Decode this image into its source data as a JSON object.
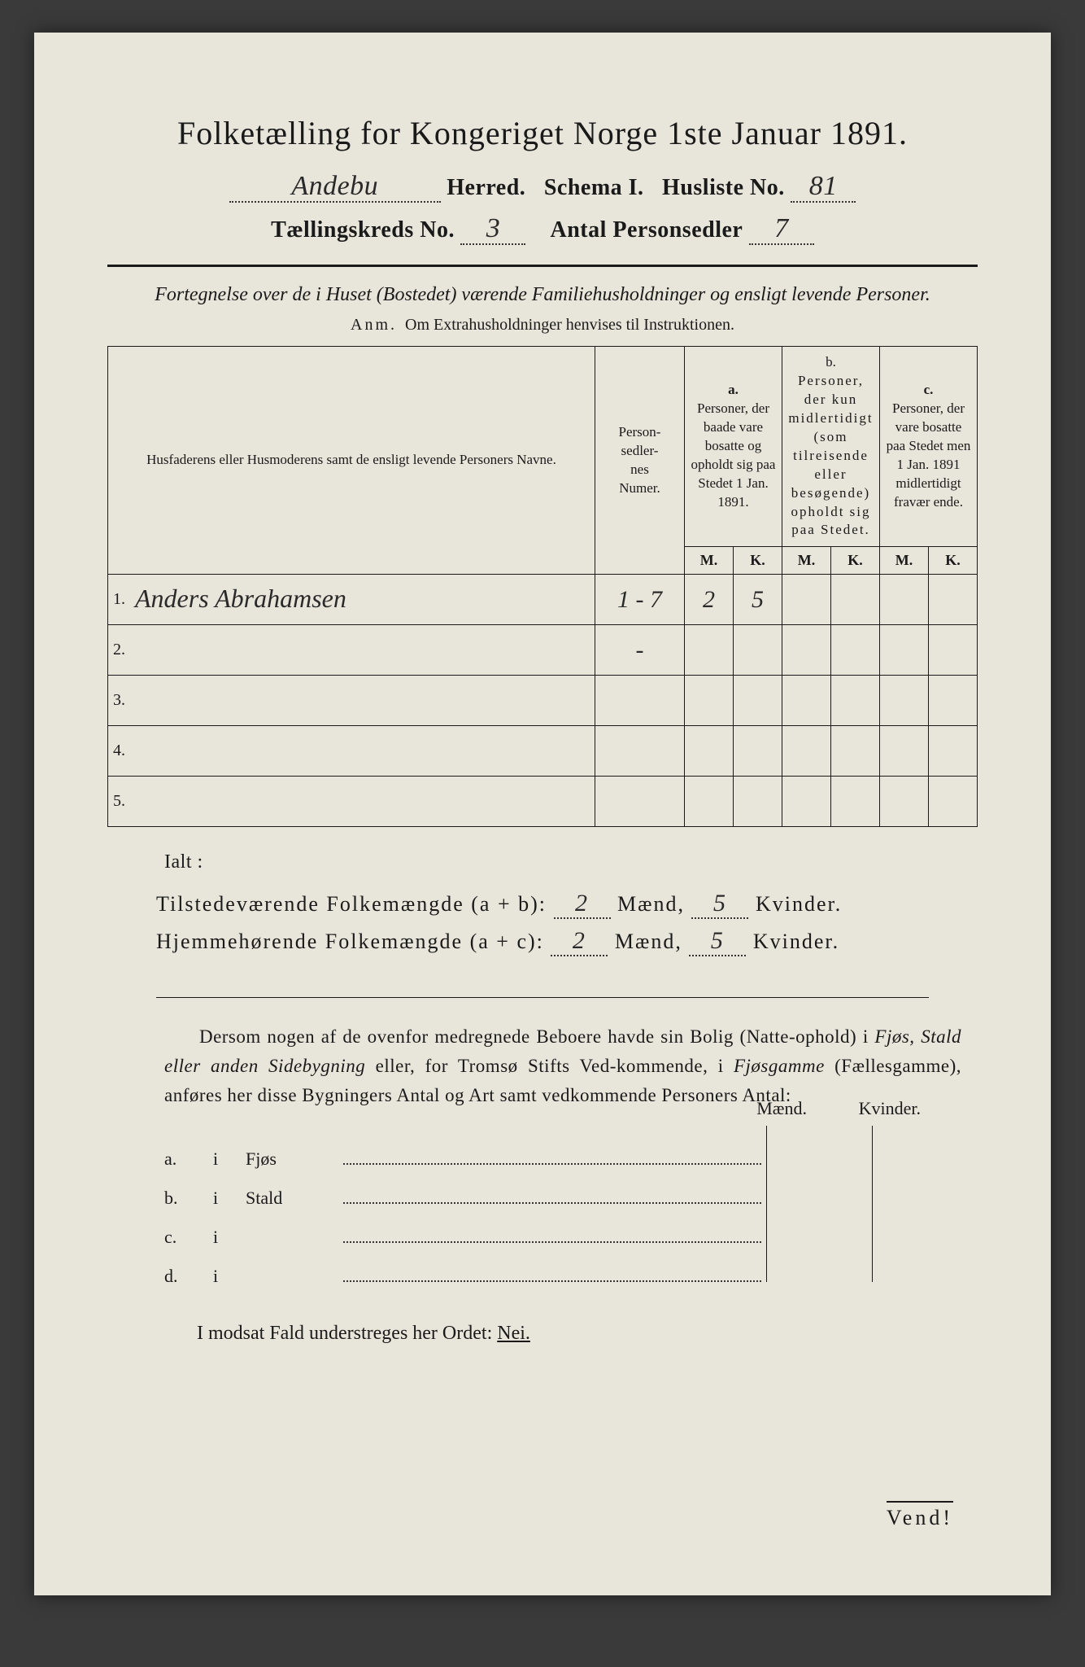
{
  "title": "Folketælling for Kongeriget Norge 1ste Januar 1891.",
  "header": {
    "herred_value": "Andebu",
    "herred_label": "Herred.",
    "schema_label": "Schema I.",
    "husliste_label": "Husliste No.",
    "husliste_value": "81",
    "kreds_label": "Tællingskreds No.",
    "kreds_value": "3",
    "sedler_label": "Antal Personsedler",
    "sedler_value": "7"
  },
  "subtitle": "Fortegnelse over de i Huset (Bostedet) værende Familiehusholdninger og ensligt levende Personer.",
  "anm_label": "Anm.",
  "anm_text": "Om Extrahusholdninger henvises til Instruktionen.",
  "table": {
    "col_name": "Husfaderens eller Husmoderens samt de ensligt levende Personers Navne.",
    "col_num": "Person-\nsedler-\nnes\nNumer.",
    "col_a_label": "a.",
    "col_a": "Personer, der baade vare bosatte og opholdt sig paa Stedet 1 Jan. 1891.",
    "col_b_label": "b.",
    "col_b": "Personer, der kun midler­tidigt (som tilreisende eller besøgende) opholdt sig paa Stedet.",
    "col_c_label": "c.",
    "col_c": "Personer, der vare bosatte paa Stedet men 1 Jan. 1891 midler­tidigt fra­vær ende.",
    "m": "M.",
    "k": "K.",
    "rows": [
      {
        "n": "1.",
        "name": "Anders Abrahamsen",
        "num": "1 - 7",
        "am": "2",
        "ak": "5",
        "bm": "",
        "bk": "",
        "cm": "",
        "ck": ""
      },
      {
        "n": "2.",
        "name": "",
        "num": "-",
        "am": "",
        "ak": "",
        "bm": "",
        "bk": "",
        "cm": "",
        "ck": ""
      },
      {
        "n": "3.",
        "name": "",
        "num": "",
        "am": "",
        "ak": "",
        "bm": "",
        "bk": "",
        "cm": "",
        "ck": ""
      },
      {
        "n": "4.",
        "name": "",
        "num": "",
        "am": "",
        "ak": "",
        "bm": "",
        "bk": "",
        "cm": "",
        "ck": ""
      },
      {
        "n": "5.",
        "name": "",
        "num": "",
        "am": "",
        "ak": "",
        "bm": "",
        "bk": "",
        "cm": "",
        "ck": ""
      }
    ]
  },
  "ialt": "Ialt :",
  "totals": {
    "line1_label": "Tilstedeværende Folkemængde (a + b):",
    "line2_label": "Hjemmehørende Folkemængde (a + c):",
    "maend": "Mænd,",
    "kvinder": "Kvinder.",
    "v1m": "2",
    "v1k": "5",
    "v2m": "2",
    "v2k": "5"
  },
  "para": "Dersom nogen af de ovenfor medregnede Beboere havde sin Bolig (Natte-ophold) i Fjøs, Stald eller anden Sidebygning eller, for Tromsø Stifts Ved-kommende, i Fjøsgamme (Fællesgamme), anføres her disse Bygningers Antal og Art samt vedkommende Personers Antal:",
  "out": {
    "maend": "Mænd.",
    "kvinder": "Kvinder.",
    "rows": [
      {
        "a": "a.",
        "i": "i",
        "type": "Fjøs"
      },
      {
        "a": "b.",
        "i": "i",
        "type": "Stald"
      },
      {
        "a": "c.",
        "i": "i",
        "type": ""
      },
      {
        "a": "d.",
        "i": "i",
        "type": ""
      }
    ]
  },
  "nei": "I modsat Fald understreges her Ordet:",
  "nei_word": "Nei.",
  "vend": "Vend!"
}
